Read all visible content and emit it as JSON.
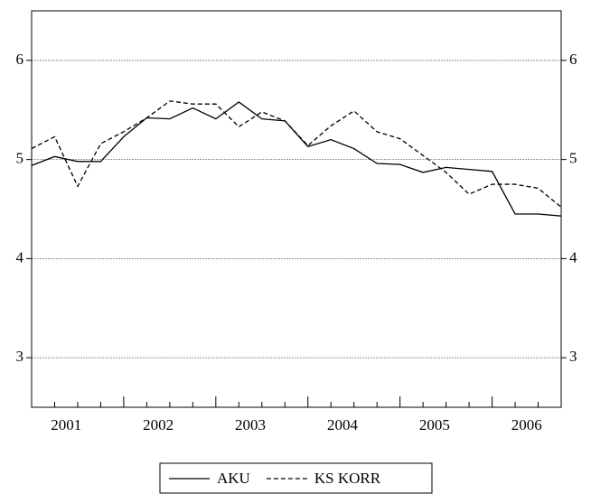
{
  "chart_data": {
    "type": "line",
    "categories": [
      "2001",
      null,
      null,
      null,
      "2002",
      null,
      null,
      null,
      "2003",
      null,
      null,
      null,
      "2004",
      null,
      null,
      null,
      "2005",
      null,
      null,
      null,
      "2006",
      null,
      null,
      null
    ],
    "series": [
      {
        "name": "AKU",
        "color": "#000000",
        "dashed": false,
        "values": [
          4.94,
          5.03,
          4.98,
          4.98,
          5.23,
          5.42,
          5.41,
          5.52,
          5.41,
          5.58,
          5.41,
          5.39,
          5.13,
          5.2,
          5.11,
          4.96,
          4.95,
          4.87,
          4.92,
          4.9,
          4.88,
          4.45,
          4.45,
          4.43
        ]
      },
      {
        "name": "KS KORR",
        "color": "#000000",
        "dashed": true,
        "values": [
          5.11,
          5.23,
          4.73,
          5.16,
          5.28,
          5.42,
          5.59,
          5.56,
          5.56,
          5.33,
          5.48,
          5.39,
          5.14,
          5.34,
          5.49,
          5.28,
          5.21,
          5.04,
          4.87,
          4.65,
          4.75,
          4.75,
          4.71,
          4.52
        ]
      }
    ],
    "ylim": [
      2.5,
      6.5
    ],
    "yticks": [
      3,
      4,
      5,
      6
    ],
    "grid": true,
    "right_axis": true,
    "legend": "bottom"
  }
}
